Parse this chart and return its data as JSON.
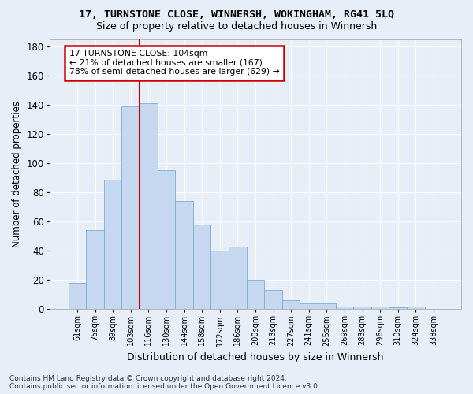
{
  "title": "17, TURNSTONE CLOSE, WINNERSH, WOKINGHAM, RG41 5LQ",
  "subtitle": "Size of property relative to detached houses in Winnersh",
  "xlabel": "Distribution of detached houses by size in Winnersh",
  "ylabel": "Number of detached properties",
  "bar_color": "#c5d8f0",
  "bar_edge_color": "#7aadd4",
  "background_color": "#e8eef8",
  "grid_color": "#ffffff",
  "categories": [
    "61sqm",
    "75sqm",
    "89sqm",
    "103sqm",
    "116sqm",
    "130sqm",
    "144sqm",
    "158sqm",
    "172sqm",
    "186sqm",
    "200sqm",
    "213sqm",
    "227sqm",
    "241sqm",
    "255sqm",
    "269sqm",
    "283sqm",
    "296sqm",
    "310sqm",
    "324sqm",
    "338sqm"
  ],
  "values": [
    18,
    54,
    89,
    139,
    141,
    95,
    74,
    58,
    40,
    43,
    20,
    13,
    6,
    4,
    4,
    2,
    2,
    2,
    1,
    2,
    0
  ],
  "ylim": [
    0,
    185
  ],
  "yticks": [
    0,
    20,
    40,
    60,
    80,
    100,
    120,
    140,
    160,
    180
  ],
  "property_line_x": 3.5,
  "annotation_line1": "17 TURNSTONE CLOSE: 104sqm",
  "annotation_line2": "← 21% of detached houses are smaller (167)",
  "annotation_line3": "78% of semi-detached houses are larger (629) →",
  "annotation_box_color": "#ffffff",
  "annotation_border_color": "#cc0000",
  "vline_color": "#cc0000",
  "footer_line1": "Contains HM Land Registry data © Crown copyright and database right 2024.",
  "footer_line2": "Contains public sector information licensed under the Open Government Licence v3.0.",
  "title_fontsize": 9.5,
  "subtitle_fontsize": 9,
  "footer_fontsize": 6.5
}
